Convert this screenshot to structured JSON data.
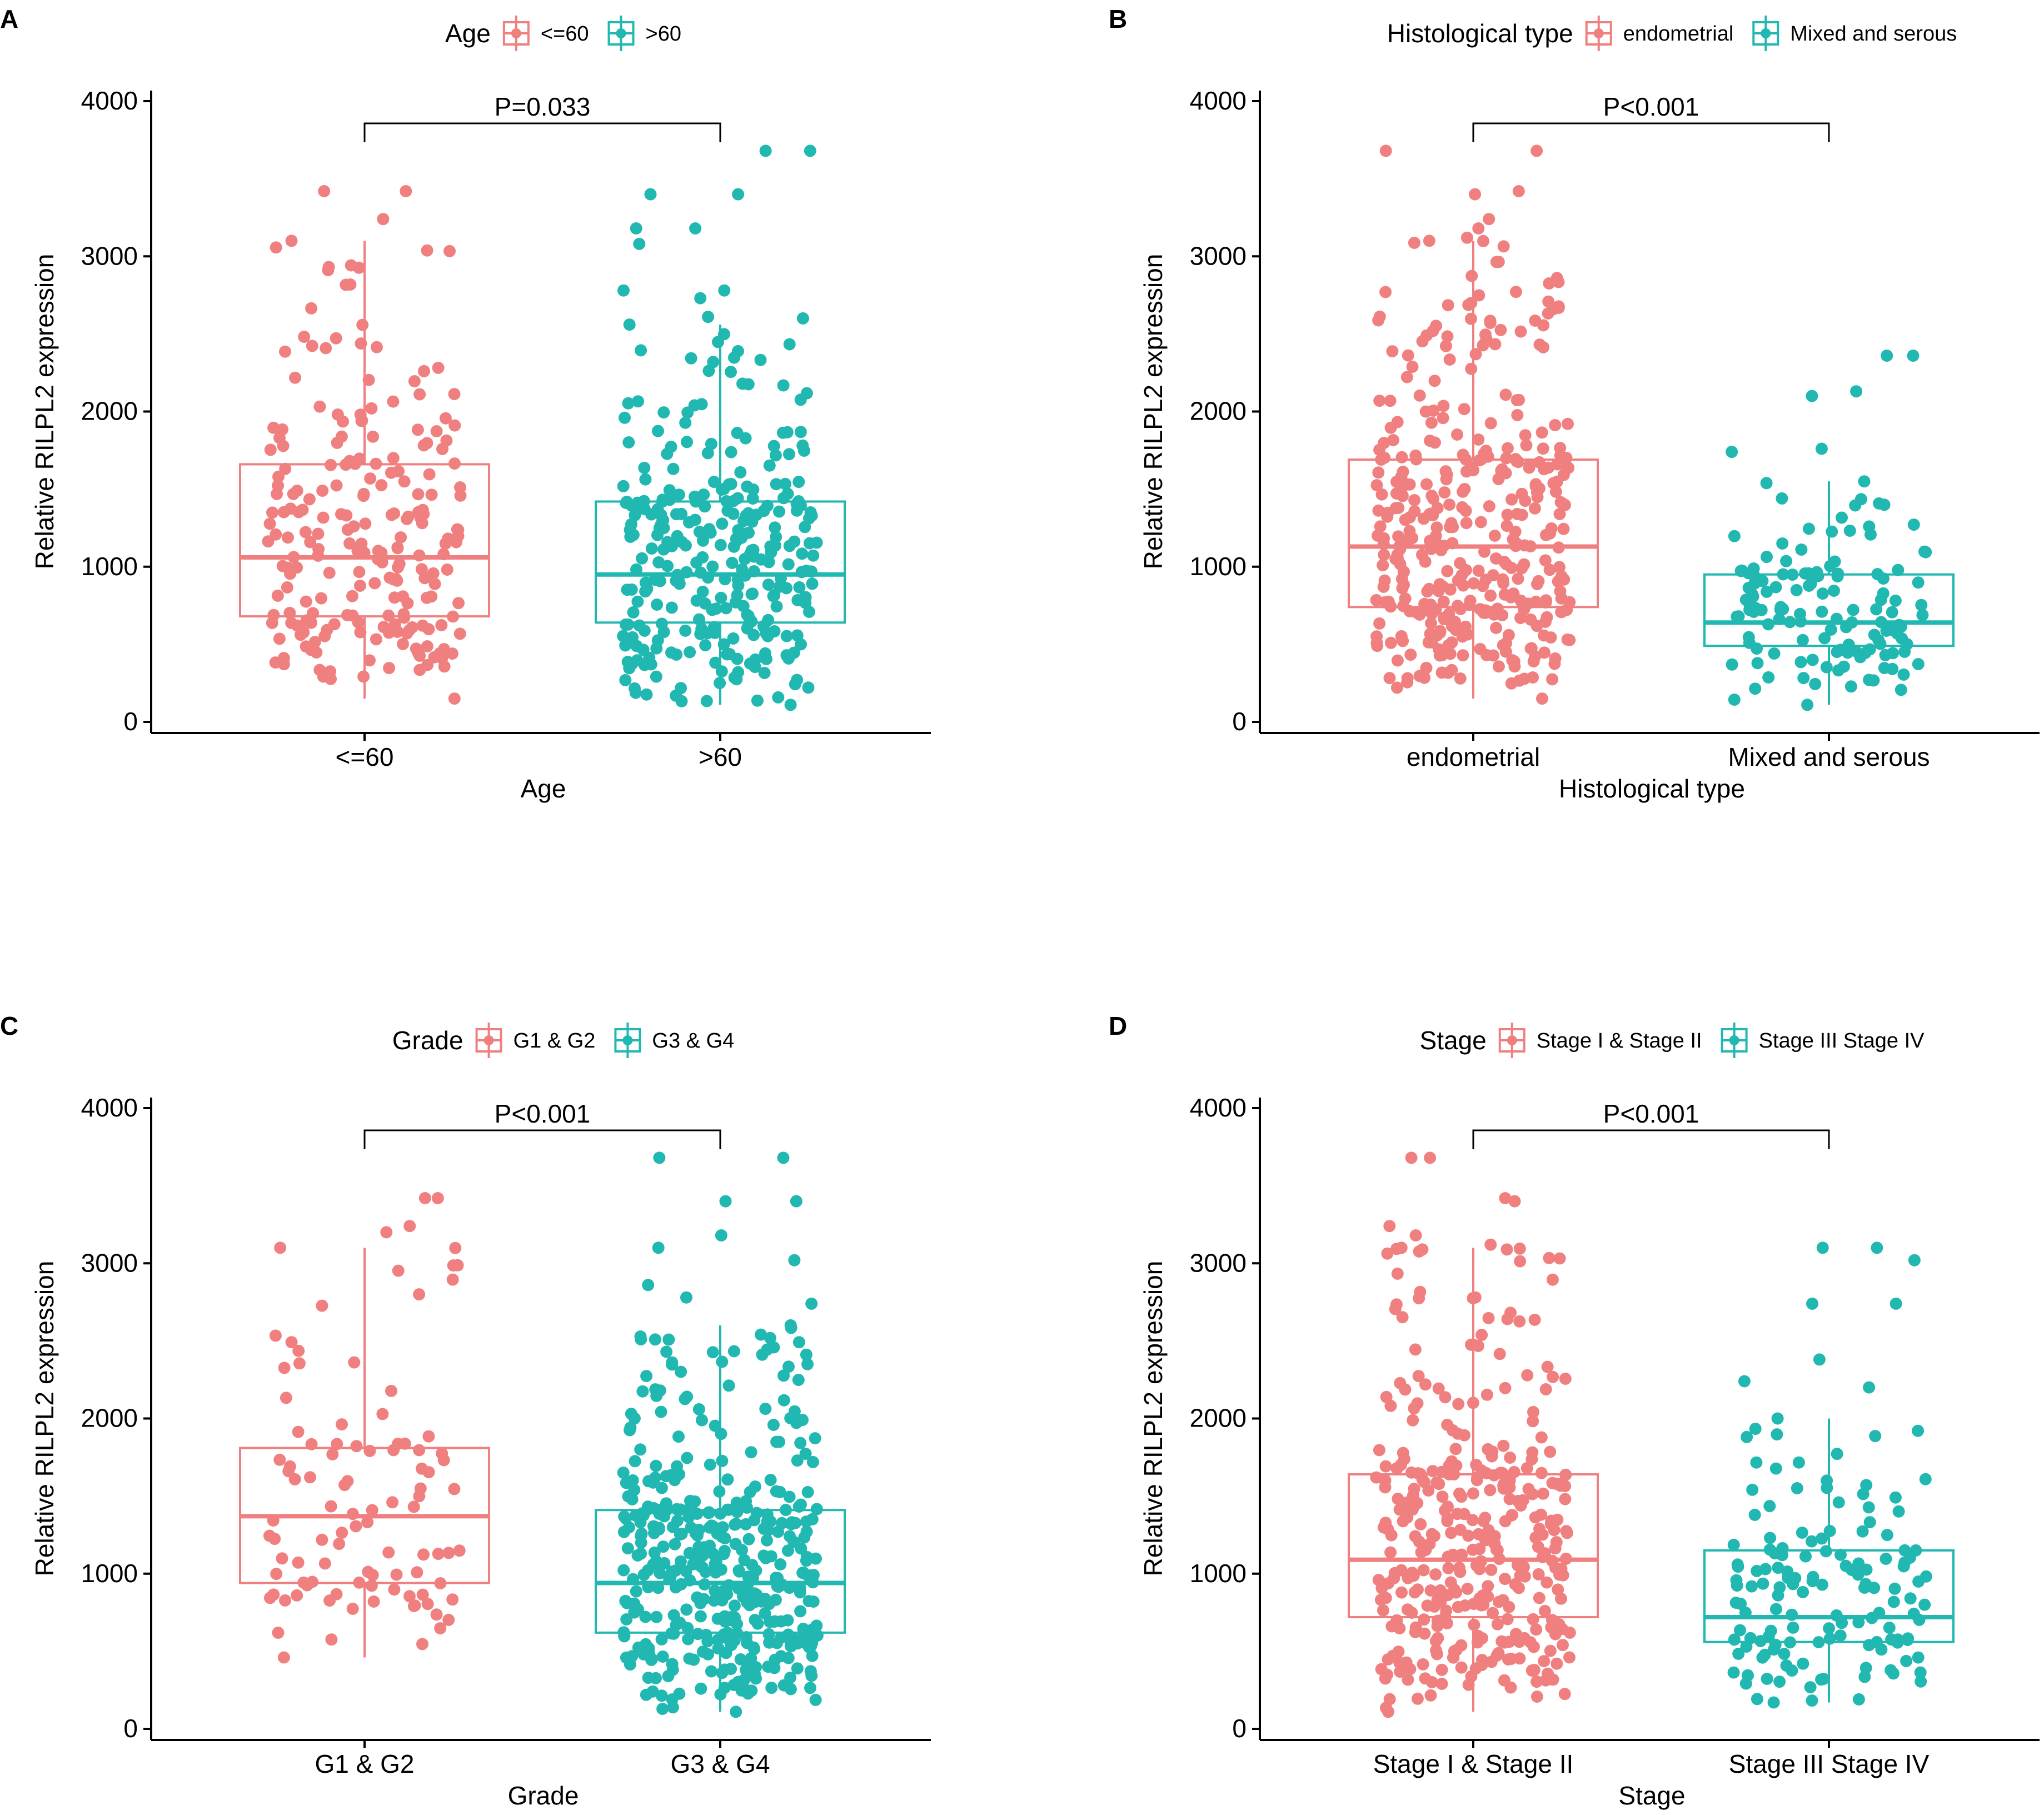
{
  "colors": {
    "group1": "#F08080",
    "group2": "#20B8B0",
    "axis": "#000000"
  },
  "chart_data": [
    {
      "type": "box",
      "panel_label": "A",
      "legend_title": "Age",
      "legend_placement": "top-center",
      "xlabel": "Age",
      "ylabel": "Relative RILPL2 expression",
      "ylim": [
        0,
        4000
      ],
      "yticks": [
        "0",
        "1000",
        "2000",
        "3000",
        "4000"
      ],
      "categories": [
        "<=60",
        ">60"
      ],
      "pvalue_label": "P=0.033",
      "series": [
        {
          "name": "<=60",
          "color": "#F08080",
          "min": 150,
          "q1": 680,
          "median": 1060,
          "q3": 1660,
          "max": 3100,
          "n_points": 220,
          "outliers": [
            3240,
            3420,
            3420
          ]
        },
        {
          "name": ">60",
          "color": "#20B8B0",
          "min": 110,
          "q1": 640,
          "median": 950,
          "q3": 1420,
          "max": 2560,
          "n_points": 300,
          "outliers": [
            2600,
            2610,
            2730,
            2780,
            2780,
            3080,
            3180,
            3180,
            3400,
            3400,
            3680,
            3680
          ]
        }
      ]
    },
    {
      "type": "box",
      "panel_label": "B",
      "legend_title": "Histological type",
      "legend_placement": "top-center",
      "xlabel": "Histological type",
      "ylabel": "Relative RILPL2 expression",
      "ylim": [
        0,
        4000
      ],
      "yticks": [
        "0",
        "1000",
        "2000",
        "3000",
        "4000"
      ],
      "categories": [
        "endometrial",
        "Mixed and serous"
      ],
      "pvalue_label": "P<0.001",
      "series": [
        {
          "name": "endometrial",
          "color": "#F08080",
          "min": 150,
          "q1": 740,
          "median": 1130,
          "q3": 1690,
          "max": 3100,
          "n_points": 380,
          "outliers": [
            3120,
            3180,
            3240,
            3400,
            3420,
            3680,
            3680
          ]
        },
        {
          "name": "Mixed and serous",
          "color": "#20B8B0",
          "min": 110,
          "q1": 490,
          "median": 640,
          "q3": 950,
          "max": 1550,
          "n_points": 130,
          "outliers": [
            1740,
            1760,
            2100,
            2130,
            2360,
            2360
          ]
        }
      ]
    },
    {
      "type": "box",
      "panel_label": "C",
      "legend_title": "Grade",
      "legend_placement": "top-center",
      "xlabel": "Grade",
      "ylabel": "Relative RILPL2 expression",
      "ylim": [
        0,
        4000
      ],
      "yticks": [
        "0",
        "1000",
        "2000",
        "3000",
        "4000"
      ],
      "categories": [
        "G1 & G2",
        "G3 & G4"
      ],
      "pvalue_label": "P<0.001",
      "series": [
        {
          "name": "G1 & G2",
          "color": "#F08080",
          "min": 460,
          "q1": 940,
          "median": 1370,
          "q3": 1810,
          "max": 3100,
          "n_points": 95,
          "outliers": [
            3200,
            3240,
            3420,
            3420
          ]
        },
        {
          "name": "G3 & G4",
          "color": "#20B8B0",
          "min": 110,
          "q1": 620,
          "median": 940,
          "q3": 1410,
          "max": 2600,
          "n_points": 420,
          "outliers": [
            2740,
            2780,
            2860,
            3020,
            3100,
            3180,
            3400,
            3400,
            3680,
            3680
          ]
        }
      ]
    },
    {
      "type": "box",
      "panel_label": "D",
      "legend_title": "Stage",
      "legend_placement": "top-center",
      "xlabel": "Stage",
      "ylabel": "Relative RILPL2 expression",
      "ylim": [
        0,
        4000
      ],
      "yticks": [
        "0",
        "1000",
        "2000",
        "3000",
        "4000"
      ],
      "categories": [
        "Stage I & Stage II",
        "Stage III Stage IV"
      ],
      "pvalue_label": "P<0.001",
      "series": [
        {
          "name": "Stage I & Stage II",
          "color": "#F08080",
          "min": 110,
          "q1": 720,
          "median": 1090,
          "q3": 1640,
          "max": 3100,
          "n_points": 360,
          "outliers": [
            3120,
            3180,
            3240,
            3400,
            3420,
            3680,
            3680
          ]
        },
        {
          "name": "Stage III Stage IV",
          "color": "#20B8B0",
          "min": 170,
          "q1": 560,
          "median": 720,
          "q3": 1150,
          "max": 2000,
          "n_points": 140,
          "outliers": [
            2200,
            2240,
            2380,
            2740,
            2740,
            3020,
            3100,
            3100
          ]
        }
      ]
    }
  ]
}
